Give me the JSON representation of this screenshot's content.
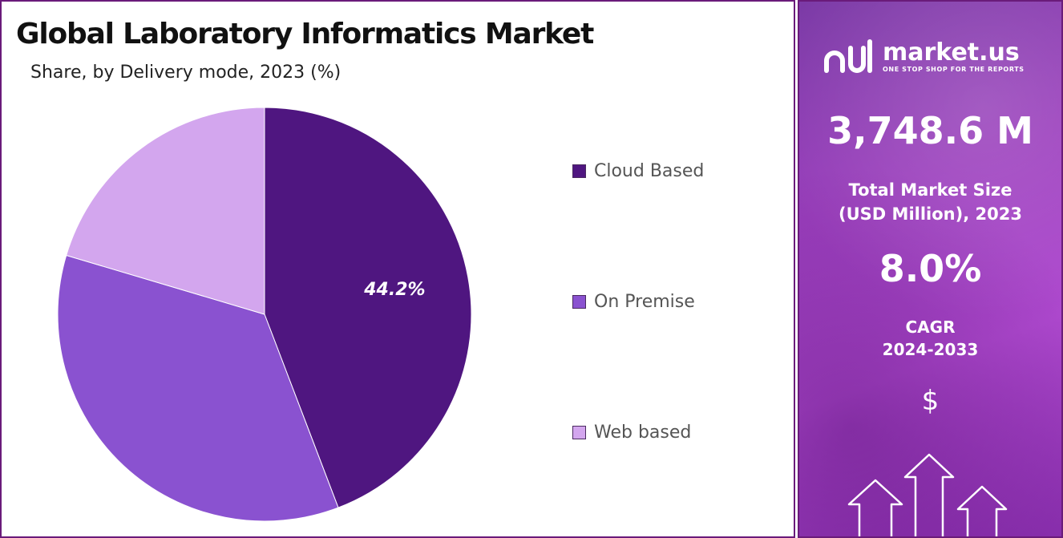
{
  "chart": {
    "title": "Global Laboratory Informatics Market",
    "subtitle": "Share, by Delivery mode, 2023 (%)"
  },
  "chart_data": {
    "type": "pie",
    "title": "Global Laboratory Informatics Market",
    "subtitle": "Share, by Delivery mode, 2023 (%)",
    "categories": [
      "Cloud Based",
      "On Premise",
      "Web based"
    ],
    "values": [
      44.2,
      35.4,
      20.4
    ],
    "data_labels": [
      "44.2%",
      "",
      ""
    ],
    "colors": [
      "#4f1680",
      "#8a52d0",
      "#d3a6ee"
    ],
    "legend_position": "right"
  },
  "side_panel": {
    "brand": "market.us",
    "tagline": "ONE STOP SHOP FOR THE REPORTS",
    "market_size_value": "3,748.6 M",
    "market_size_label_1": "Total Market Size",
    "market_size_label_2": "(USD Million), 2023",
    "cagr_value": "8.0%",
    "cagr_label_1": "CAGR",
    "cagr_label_2": "2024-2033",
    "currency_symbol": "$",
    "icons": [
      "market-us-logo-icon",
      "dollar-icon",
      "up-arrows-icon"
    ]
  }
}
